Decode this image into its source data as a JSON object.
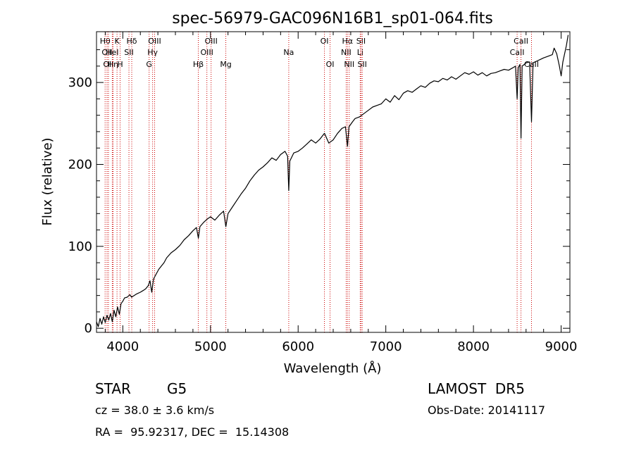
{
  "title": "spec-56979-GAC096N16B1_sp01-064.fits",
  "chart_data": {
    "type": "line",
    "xlabel": "Wavelength (Å)",
    "ylabel": "Flux (relative)",
    "xlim": [
      3700,
      9100
    ],
    "ylim": [
      -5,
      362
    ],
    "x_ticks": [
      4000,
      5000,
      6000,
      7000,
      8000,
      9000
    ],
    "y_ticks": [
      0,
      100,
      200,
      300
    ],
    "series": [
      {
        "values": [
          [
            3700,
            8
          ],
          [
            3720,
            2
          ],
          [
            3740,
            12
          ],
          [
            3760,
            5
          ],
          [
            3780,
            14
          ],
          [
            3800,
            7
          ],
          [
            3820,
            16
          ],
          [
            3840,
            10
          ],
          [
            3860,
            18
          ],
          [
            3880,
            8
          ],
          [
            3900,
            22
          ],
          [
            3920,
            14
          ],
          [
            3940,
            26
          ],
          [
            3960,
            17
          ],
          [
            3980,
            30
          ],
          [
            4000,
            33
          ],
          [
            4020,
            37
          ],
          [
            4050,
            38
          ],
          [
            4080,
            41
          ],
          [
            4100,
            38
          ],
          [
            4130,
            40
          ],
          [
            4160,
            42
          ],
          [
            4200,
            44
          ],
          [
            4230,
            46
          ],
          [
            4260,
            48
          ],
          [
            4290,
            52
          ],
          [
            4310,
            58
          ],
          [
            4330,
            44
          ],
          [
            4350,
            60
          ],
          [
            4380,
            66
          ],
          [
            4410,
            72
          ],
          [
            4440,
            76
          ],
          [
            4470,
            80
          ],
          [
            4500,
            86
          ],
          [
            4550,
            92
          ],
          [
            4600,
            96
          ],
          [
            4650,
            101
          ],
          [
            4700,
            108
          ],
          [
            4750,
            113
          ],
          [
            4800,
            119
          ],
          [
            4840,
            123
          ],
          [
            4862,
            110
          ],
          [
            4880,
            124
          ],
          [
            4920,
            129
          ],
          [
            4960,
            133
          ],
          [
            5000,
            136
          ],
          [
            5050,
            132
          ],
          [
            5100,
            138
          ],
          [
            5150,
            143
          ],
          [
            5175,
            124
          ],
          [
            5200,
            140
          ],
          [
            5250,
            148
          ],
          [
            5300,
            156
          ],
          [
            5350,
            164
          ],
          [
            5400,
            171
          ],
          [
            5450,
            180
          ],
          [
            5500,
            187
          ],
          [
            5550,
            193
          ],
          [
            5600,
            197
          ],
          [
            5650,
            202
          ],
          [
            5700,
            208
          ],
          [
            5750,
            205
          ],
          [
            5800,
            212
          ],
          [
            5850,
            216
          ],
          [
            5880,
            210
          ],
          [
            5893,
            168
          ],
          [
            5905,
            204
          ],
          [
            5950,
            214
          ],
          [
            6000,
            216
          ],
          [
            6050,
            220
          ],
          [
            6100,
            225
          ],
          [
            6150,
            230
          ],
          [
            6200,
            226
          ],
          [
            6250,
            231
          ],
          [
            6300,
            238
          ],
          [
            6350,
            226
          ],
          [
            6400,
            230
          ],
          [
            6450,
            238
          ],
          [
            6500,
            244
          ],
          [
            6540,
            246
          ],
          [
            6563,
            222
          ],
          [
            6580,
            246
          ],
          [
            6620,
            252
          ],
          [
            6650,
            256
          ],
          [
            6700,
            258
          ],
          [
            6750,
            262
          ],
          [
            6800,
            266
          ],
          [
            6850,
            270
          ],
          [
            6900,
            272
          ],
          [
            6950,
            274
          ],
          [
            7000,
            280
          ],
          [
            7050,
            276
          ],
          [
            7100,
            284
          ],
          [
            7150,
            279
          ],
          [
            7200,
            287
          ],
          [
            7250,
            290
          ],
          [
            7300,
            288
          ],
          [
            7350,
            292
          ],
          [
            7400,
            296
          ],
          [
            7450,
            294
          ],
          [
            7500,
            299
          ],
          [
            7550,
            302
          ],
          [
            7600,
            301
          ],
          [
            7650,
            305
          ],
          [
            7700,
            303
          ],
          [
            7750,
            307
          ],
          [
            7800,
            304
          ],
          [
            7850,
            308
          ],
          [
            7900,
            312
          ],
          [
            7950,
            310
          ],
          [
            8000,
            313
          ],
          [
            8050,
            309
          ],
          [
            8100,
            312
          ],
          [
            8150,
            308
          ],
          [
            8200,
            311
          ],
          [
            8250,
            312
          ],
          [
            8300,
            314
          ],
          [
            8350,
            316
          ],
          [
            8400,
            315
          ],
          [
            8450,
            318
          ],
          [
            8480,
            320
          ],
          [
            8498,
            280
          ],
          [
            8510,
            318
          ],
          [
            8530,
            322
          ],
          [
            8542,
            232
          ],
          [
            8555,
            320
          ],
          [
            8580,
            322
          ],
          [
            8600,
            324
          ],
          [
            8640,
            325
          ],
          [
            8662,
            252
          ],
          [
            8680,
            324
          ],
          [
            8720,
            326
          ],
          [
            8760,
            328
          ],
          [
            8800,
            330
          ],
          [
            8850,
            332
          ],
          [
            8900,
            334
          ],
          [
            8920,
            342
          ],
          [
            8950,
            335
          ],
          [
            8980,
            320
          ],
          [
            9000,
            308
          ],
          [
            9020,
            325
          ],
          [
            9040,
            335
          ],
          [
            9060,
            345
          ],
          [
            9080,
            358
          ]
        ]
      }
    ],
    "lines": [
      {
        "x": 3798,
        "label": "Hθ",
        "row": 0
      },
      {
        "x": 3820,
        "label": "OII",
        "row": 1
      },
      {
        "x": 3836,
        "label": "OII",
        "row": 2
      },
      {
        "x": 3889,
        "label": "Hη",
        "row": 2
      },
      {
        "x": 3880,
        "label": "HeI",
        "row": 1
      },
      {
        "x": 3934,
        "label": "K",
        "row": 0
      },
      {
        "x": 3969,
        "label": "H",
        "row": 2
      },
      {
        "x": 4070,
        "label": "SII",
        "row": 1
      },
      {
        "x": 4102,
        "label": "Hδ",
        "row": 0
      },
      {
        "x": 4300,
        "label": "G",
        "row": 2
      },
      {
        "x": 4340,
        "label": "Hγ",
        "row": 1
      },
      {
        "x": 4363,
        "label": "OIII",
        "row": 0
      },
      {
        "x": 4861,
        "label": "Hβ",
        "row": 2
      },
      {
        "x": 4959,
        "label": "OIII",
        "row": 1
      },
      {
        "x": 5007,
        "label": "OIII",
        "row": 0
      },
      {
        "x": 5175,
        "label": "Mg",
        "row": 2
      },
      {
        "x": 5893,
        "label": "Na",
        "row": 1
      },
      {
        "x": 6300,
        "label": "OI",
        "row": 0
      },
      {
        "x": 6364,
        "label": "OI",
        "row": 2
      },
      {
        "x": 6548,
        "label": "NII",
        "row": 1
      },
      {
        "x": 6563,
        "label": "Hα",
        "row": 0
      },
      {
        "x": 6583,
        "label": "NII",
        "row": 2
      },
      {
        "x": 6708,
        "label": "Li",
        "row": 1
      },
      {
        "x": 6717,
        "label": "SII",
        "row": 0
      },
      {
        "x": 6731,
        "label": "SII",
        "row": 2
      },
      {
        "x": 8498,
        "label": "CaII",
        "row": 1
      },
      {
        "x": 8542,
        "label": "CaII",
        "row": 0
      },
      {
        "x": 8662,
        "label": "CaII",
        "row": 2
      }
    ]
  },
  "info": {
    "object_class": "STAR",
    "subclass": "G5",
    "release": "LAMOST  DR5",
    "redshift": "cz = 38.0 ± 3.6 km/s",
    "obs_date": "Obs-Date: 20141117",
    "coords": "RA =  95.92317, DEC =  15.14308"
  }
}
